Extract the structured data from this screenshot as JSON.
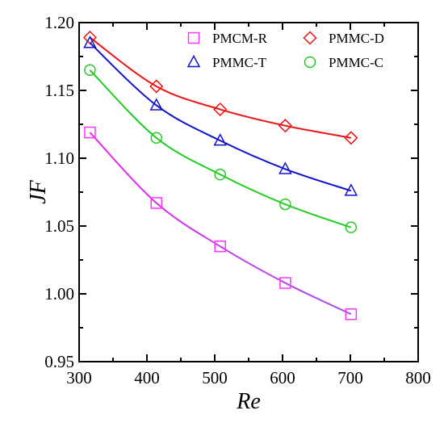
{
  "chart_data": {
    "type": "line",
    "title": "",
    "xlabel": "Re",
    "ylabel": "JF",
    "xlim": [
      300,
      800
    ],
    "ylim": [
      0.95,
      1.2
    ],
    "xticks": [
      300,
      400,
      500,
      600,
      700,
      800
    ],
    "xtick_labels": [
      "300",
      "400",
      "500",
      "600",
      "700",
      "800"
    ],
    "yticks": [
      0.95,
      1.0,
      1.05,
      1.1,
      1.15,
      1.2
    ],
    "ytick_labels": [
      "0.95",
      "1.00",
      "1.05",
      "1.10",
      "1.15",
      "1.20"
    ],
    "grid": false,
    "legend_position": "top-right",
    "x": [
      316,
      414,
      508,
      604,
      701
    ],
    "series": [
      {
        "name": "PMCM-R",
        "marker": "square",
        "marker_color": "#ff33ff",
        "line_color": [
          "#ee22ee",
          "#a050ee"
        ],
        "values": [
          1.119,
          1.067,
          1.035,
          1.008,
          0.985
        ]
      },
      {
        "name": "PMMC-D",
        "marker": "diamond",
        "marker_color": "#ee1111",
        "line_color": [
          "#ee1111",
          "#ee1111"
        ],
        "values": [
          1.189,
          1.153,
          1.136,
          1.124,
          1.115
        ]
      },
      {
        "name": "PMMC-T",
        "marker": "triangle",
        "marker_color": "#1111cc",
        "line_color": [
          "#1111cc",
          "#1111cc"
        ],
        "values": [
          1.185,
          1.139,
          1.113,
          1.092,
          1.076
        ]
      },
      {
        "name": "PMMC-C",
        "marker": "circle",
        "marker_color": "#22cc22",
        "line_color": [
          "#22cc22",
          "#22cc22"
        ],
        "values": [
          1.165,
          1.115,
          1.088,
          1.066,
          1.049
        ]
      }
    ]
  }
}
